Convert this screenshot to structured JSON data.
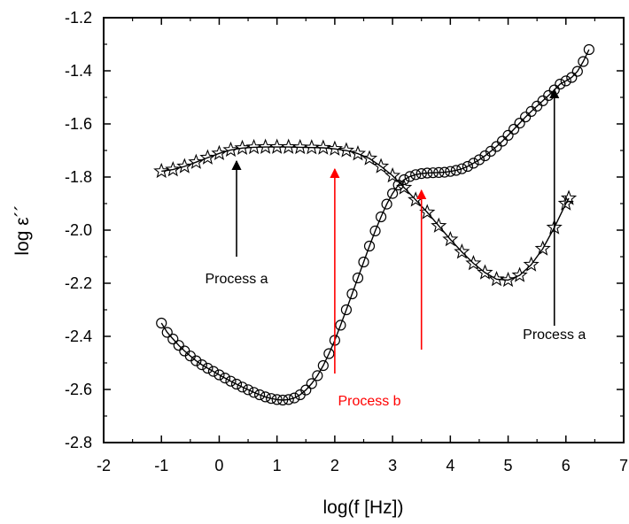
{
  "chart_data": {
    "type": "scatter",
    "xlabel": "log(f [Hz])",
    "ylabel": "log ε´´",
    "xlim": [
      -2,
      7
    ],
    "ylim": [
      -2.8,
      -1.2
    ],
    "x_ticks": [
      "-2",
      "-1",
      "0",
      "1",
      "2",
      "3",
      "4",
      "5",
      "6",
      "7"
    ],
    "y_ticks": [
      "-2.8",
      "-2.6",
      "-2.4",
      "-2.2",
      "-2.0",
      "-1.8",
      "-1.6",
      "-1.4",
      "-1.2"
    ],
    "grid": false,
    "series": [
      {
        "marker": "star",
        "fit_line": true,
        "points": [
          [
            -1.0,
            -1.778
          ],
          [
            -0.8,
            -1.772
          ],
          [
            -0.6,
            -1.76
          ],
          [
            -0.4,
            -1.744
          ],
          [
            -0.2,
            -1.727
          ],
          [
            0.0,
            -1.711
          ],
          [
            0.2,
            -1.698
          ],
          [
            0.4,
            -1.691
          ],
          [
            0.6,
            -1.688
          ],
          [
            0.8,
            -1.687
          ],
          [
            1.0,
            -1.687
          ],
          [
            1.2,
            -1.687
          ],
          [
            1.4,
            -1.688
          ],
          [
            1.6,
            -1.689
          ],
          [
            1.8,
            -1.69
          ],
          [
            2.0,
            -1.694
          ],
          [
            2.2,
            -1.7
          ],
          [
            2.4,
            -1.712
          ],
          [
            2.6,
            -1.73
          ],
          [
            2.8,
            -1.76
          ],
          [
            3.0,
            -1.795
          ],
          [
            3.2,
            -1.84
          ],
          [
            3.4,
            -1.886
          ],
          [
            3.6,
            -1.933
          ],
          [
            3.8,
            -1.984
          ],
          [
            4.0,
            -2.035
          ],
          [
            4.2,
            -2.082
          ],
          [
            4.4,
            -2.125
          ],
          [
            4.6,
            -2.16
          ],
          [
            4.8,
            -2.185
          ],
          [
            5.0,
            -2.188
          ],
          [
            5.2,
            -2.17
          ],
          [
            5.4,
            -2.13
          ],
          [
            5.6,
            -2.07
          ],
          [
            5.8,
            -1.99
          ],
          [
            6.0,
            -1.9
          ],
          [
            6.05,
            -1.88
          ]
        ]
      },
      {
        "marker": "circle",
        "fit_line": true,
        "points": [
          [
            -1.0,
            -2.35
          ],
          [
            -0.9,
            -2.385
          ],
          [
            -0.8,
            -2.41
          ],
          [
            -0.7,
            -2.434
          ],
          [
            -0.6,
            -2.455
          ],
          [
            -0.5,
            -2.474
          ],
          [
            -0.4,
            -2.492
          ],
          [
            -0.3,
            -2.507
          ],
          [
            -0.2,
            -2.52
          ],
          [
            -0.1,
            -2.532
          ],
          [
            0.0,
            -2.545
          ],
          [
            0.1,
            -2.557
          ],
          [
            0.2,
            -2.569
          ],
          [
            0.3,
            -2.58
          ],
          [
            0.4,
            -2.591
          ],
          [
            0.5,
            -2.601
          ],
          [
            0.6,
            -2.611
          ],
          [
            0.7,
            -2.62
          ],
          [
            0.8,
            -2.628
          ],
          [
            0.9,
            -2.634
          ],
          [
            1.0,
            -2.638
          ],
          [
            1.1,
            -2.64
          ],
          [
            1.2,
            -2.638
          ],
          [
            1.3,
            -2.632
          ],
          [
            1.4,
            -2.62
          ],
          [
            1.5,
            -2.602
          ],
          [
            1.6,
            -2.578
          ],
          [
            1.7,
            -2.548
          ],
          [
            1.8,
            -2.51
          ],
          [
            1.9,
            -2.465
          ],
          [
            2.0,
            -2.415
          ],
          [
            2.1,
            -2.358
          ],
          [
            2.2,
            -2.3
          ],
          [
            2.3,
            -2.24
          ],
          [
            2.4,
            -2.18
          ],
          [
            2.5,
            -2.12
          ],
          [
            2.6,
            -2.06
          ],
          [
            2.7,
            -2.003
          ],
          [
            2.8,
            -1.95
          ],
          [
            2.9,
            -1.902
          ],
          [
            3.0,
            -1.862
          ],
          [
            3.1,
            -1.83
          ],
          [
            3.2,
            -1.81
          ],
          [
            3.3,
            -1.798
          ],
          [
            3.4,
            -1.791
          ],
          [
            3.5,
            -1.787
          ],
          [
            3.6,
            -1.785
          ],
          [
            3.7,
            -1.784
          ],
          [
            3.8,
            -1.783
          ],
          [
            3.9,
            -1.782
          ],
          [
            4.0,
            -1.779
          ],
          [
            4.1,
            -1.775
          ],
          [
            4.2,
            -1.769
          ],
          [
            4.3,
            -1.76
          ],
          [
            4.4,
            -1.748
          ],
          [
            4.5,
            -1.735
          ],
          [
            4.6,
            -1.72
          ],
          [
            4.7,
            -1.703
          ],
          [
            4.8,
            -1.685
          ],
          [
            4.9,
            -1.665
          ],
          [
            5.0,
            -1.643
          ],
          [
            5.1,
            -1.62
          ],
          [
            5.2,
            -1.597
          ],
          [
            5.3,
            -1.574
          ],
          [
            5.4,
            -1.553
          ],
          [
            5.5,
            -1.533
          ],
          [
            5.6,
            -1.513
          ],
          [
            5.7,
            -1.493
          ],
          [
            5.8,
            -1.472
          ],
          [
            5.9,
            -1.45
          ],
          [
            6.0,
            -1.438
          ],
          [
            6.1,
            -1.425
          ],
          [
            6.2,
            -1.402
          ],
          [
            6.3,
            -1.365
          ],
          [
            6.4,
            -1.32
          ]
        ]
      }
    ],
    "annotations": [
      {
        "text": "Process a",
        "color": "#000000",
        "arrow_x": 0.3,
        "arrow_y_from": -2.1,
        "arrow_y_to": -1.74,
        "text_x": 0.3,
        "text_y": -2.2
      },
      {
        "text": "Process b",
        "color": "#ff0000",
        "arrow_x": 2.0,
        "arrow_y_from": -2.54,
        "arrow_y_to": -1.77,
        "text_x": 2.6,
        "text_y": -2.66
      },
      {
        "text": "",
        "color": "#ff0000",
        "arrow_x": 3.5,
        "arrow_y_from": -2.45,
        "arrow_y_to": -1.85
      },
      {
        "text": "Process a",
        "color": "#000000",
        "arrow_x": 5.8,
        "arrow_y_from": -2.36,
        "arrow_y_to": -1.47,
        "text_x": 5.8,
        "text_y": -2.41
      }
    ]
  }
}
